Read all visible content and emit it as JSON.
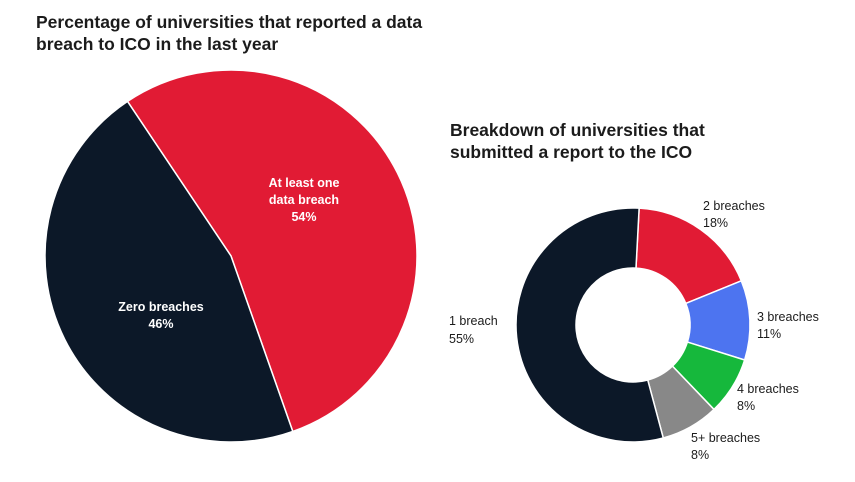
{
  "chart_data": [
    {
      "type": "pie",
      "title_lines": [
        "Percentage of universities that reported a data",
        "breach to ICO in the last year"
      ],
      "slices": [
        {
          "label_lines": [
            "At least one",
            "data breach"
          ],
          "value": 54,
          "value_label": "54%",
          "color": "#e11b34"
        },
        {
          "label_lines": [
            "Zero breaches"
          ],
          "value": 46,
          "value_label": "46%",
          "color": "#0c1828"
        }
      ]
    },
    {
      "type": "pie",
      "variant": "donut",
      "title_lines": [
        "Breakdown of universities that",
        "submitted a report to the ICO"
      ],
      "slices": [
        {
          "label": "2 breaches",
          "value": 18,
          "value_label": "18%",
          "color": "#e11b34"
        },
        {
          "label": "3 breaches",
          "value": 11,
          "value_label": "11%",
          "color": "#4d74f0"
        },
        {
          "label": "4 breaches",
          "value": 8,
          "value_label": "8%",
          "color": "#16b83c"
        },
        {
          "label": "5+ breaches",
          "value": 8,
          "value_label": "8%",
          "color": "#888888"
        },
        {
          "label": "1 breach",
          "value": 55,
          "value_label": "55%",
          "color": "#0c1828"
        }
      ]
    }
  ]
}
